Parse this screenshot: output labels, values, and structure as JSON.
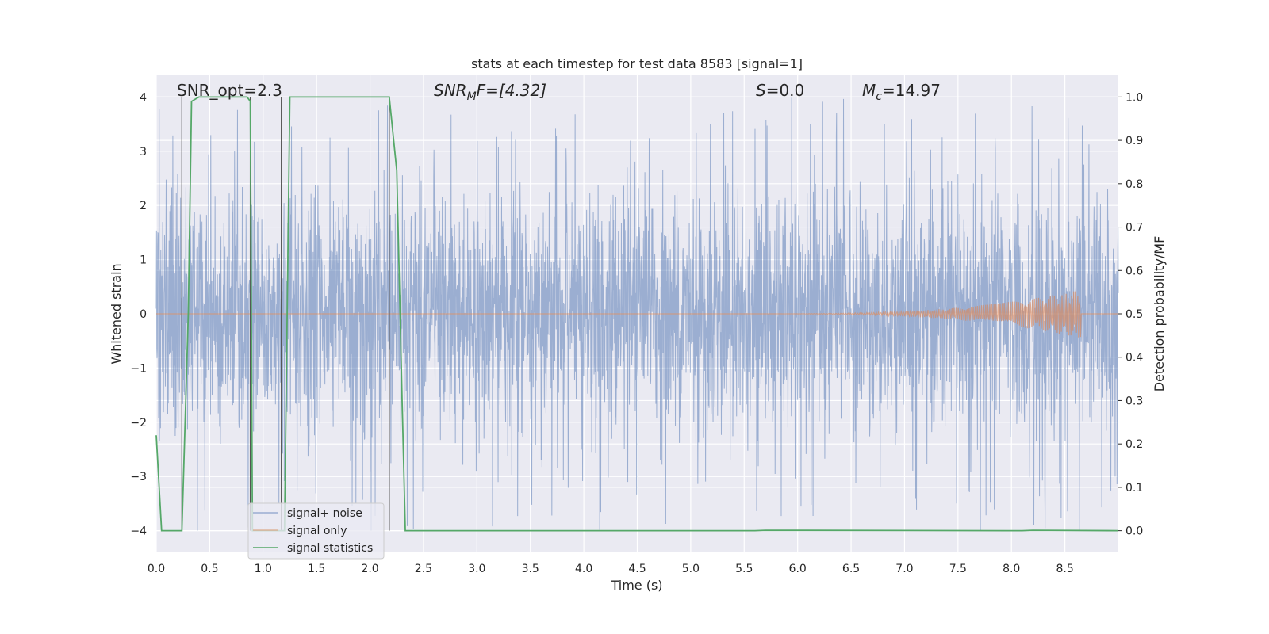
{
  "chart_data": {
    "type": "line",
    "title": "stats at each timestep for test data 8583 [signal=1]",
    "xlabel": "Time (s)",
    "ylabel": "Whitened strain",
    "y2label": "Detection probability/MF",
    "xlim": [
      0.0,
      9.0
    ],
    "ylim": [
      -4.4,
      4.4
    ],
    "y2lim": [
      -0.05,
      1.05
    ],
    "xticks": [
      "0.0",
      "0.5",
      "1.0",
      "1.5",
      "2.0",
      "2.5",
      "3.0",
      "3.5",
      "4.0",
      "4.5",
      "5.0",
      "5.5",
      "6.0",
      "6.5",
      "7.0",
      "7.5",
      "8.0",
      "8.5"
    ],
    "yticks": [
      "−4",
      "−3",
      "−2",
      "−1",
      "0",
      "1",
      "2",
      "3",
      "4"
    ],
    "y2ticks": [
      "0.0",
      "0.1",
      "0.2",
      "0.3",
      "0.4",
      "0.5",
      "0.6",
      "0.7",
      "0.8",
      "0.9",
      "1.0"
    ],
    "grid": true,
    "legend_position": "lower-left",
    "annotations": {
      "snr_opt": "SNR_opt=2.3",
      "snr_mf_main": "SNR",
      "snr_mf_sub": "M",
      "snr_mf_rest": "F=[4.32]",
      "s_main": "S",
      "s_rest": "=0.0",
      "mc_main": "M",
      "mc_sub": "c",
      "mc_rest": "=14.97"
    },
    "series": [
      {
        "name": "signal+ noise",
        "color": "#4c72b0",
        "style": "noise",
        "amplitude_envelope": {
          "typical_abs": [
            1.5,
            2.4
          ],
          "peak_abs": [
            3.0,
            4.0
          ]
        }
      },
      {
        "name": "signal only",
        "color": "#dd8452",
        "style": "chirp",
        "x_start": 5.5,
        "x_end": 8.65,
        "peak_amplitude": 0.45
      },
      {
        "name": "signal statistics",
        "color": "#55a868",
        "axis": "right",
        "x": [
          0.0,
          0.05,
          0.24,
          0.3,
          0.33,
          0.4,
          0.85,
          0.88,
          0.9,
          1.2,
          1.25,
          2.18,
          2.25,
          2.3,
          2.33,
          5.6,
          5.7,
          8.1,
          8.2,
          9.0
        ],
        "y": [
          0.22,
          0.0,
          0.0,
          0.5,
          0.99,
          1.0,
          1.0,
          0.99,
          0.0,
          0.0,
          1.0,
          1.0,
          0.83,
          0.3,
          0.0,
          0.0,
          0.001,
          0.0,
          0.001,
          0.0
        ]
      }
    ],
    "vertical_markers": {
      "color": "#555555",
      "x": [
        0.24,
        0.88,
        1.17,
        2.18
      ]
    }
  }
}
